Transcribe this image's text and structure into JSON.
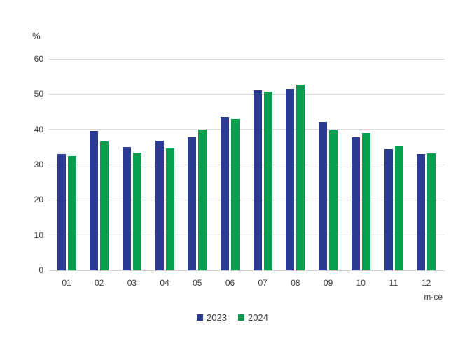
{
  "chart_data": {
    "type": "bar",
    "title": "",
    "ylabel": "%",
    "xlabel": "m-ce",
    "categories": [
      "01",
      "02",
      "03",
      "04",
      "05",
      "06",
      "07",
      "08",
      "09",
      "10",
      "11",
      "12"
    ],
    "series": [
      {
        "name": "2023",
        "color": "#2c3b92",
        "values": [
          33.0,
          39.6,
          35.0,
          36.7,
          37.8,
          43.6,
          51.1,
          51.5,
          42.1,
          37.8,
          34.3,
          33.0
        ]
      },
      {
        "name": "2024",
        "color": "#069e4f",
        "values": [
          32.3,
          36.6,
          33.3,
          34.5,
          40.0,
          42.9,
          50.7,
          52.6,
          39.8,
          38.9,
          35.3,
          33.1
        ]
      }
    ],
    "ylim": [
      0,
      60
    ],
    "ytick_step": 10,
    "grid": true,
    "grid_color": "#d9d9d9",
    "legend_position": "bottom",
    "text_color": "#3f3f3f",
    "background_color": "#ffffff"
  }
}
